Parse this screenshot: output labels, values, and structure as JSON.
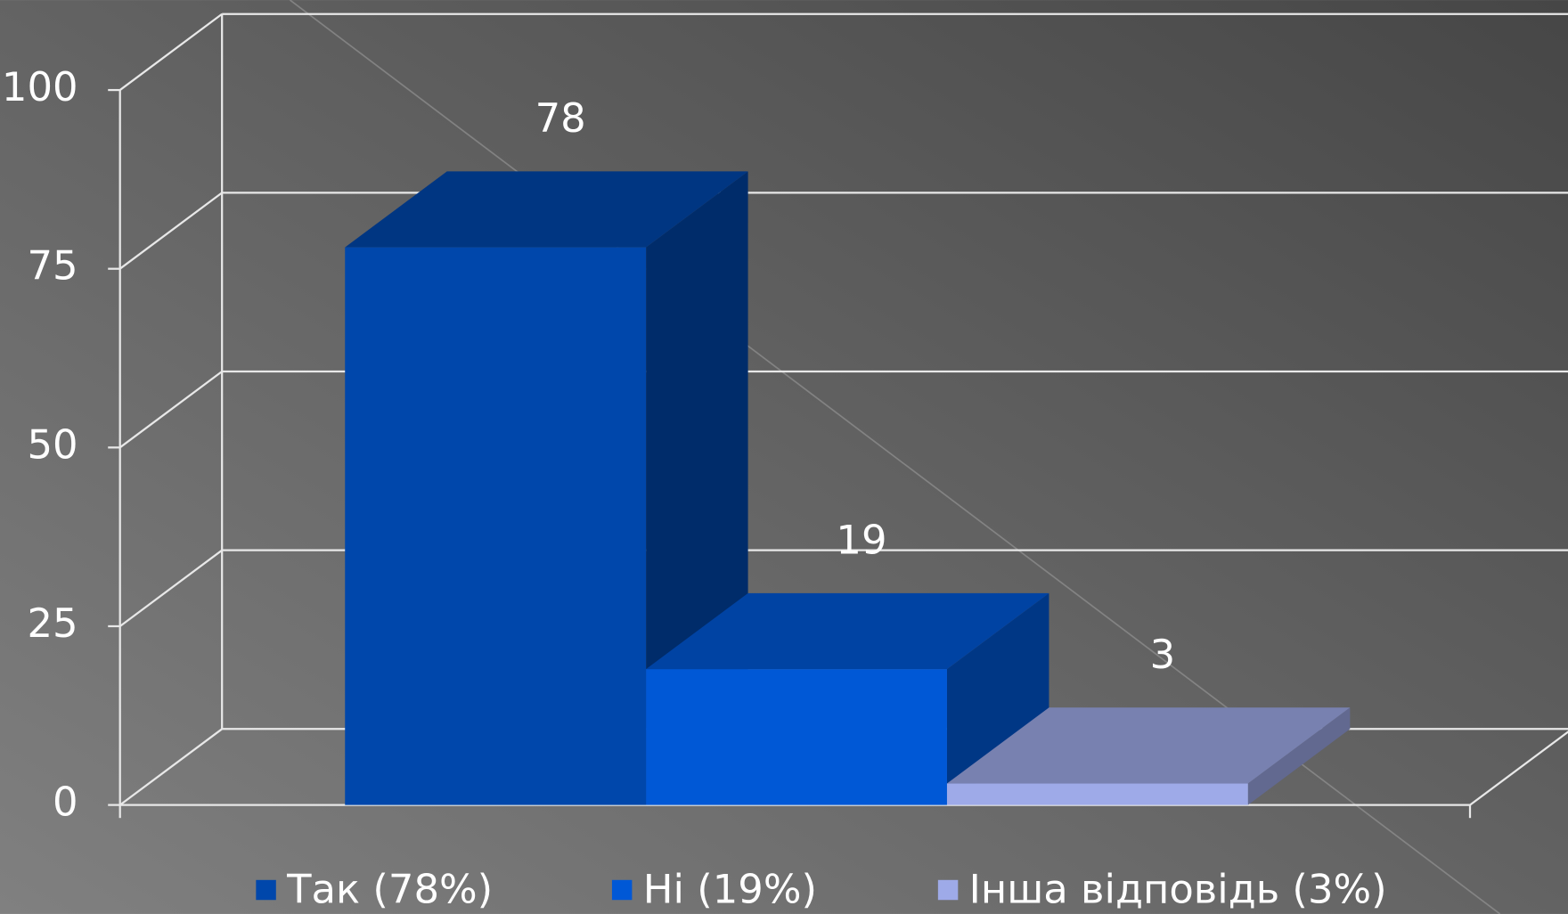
{
  "chart_data": {
    "type": "bar3d",
    "categories": [
      null
    ],
    "series": [
      {
        "name": "Так (78%)",
        "color": "#0047ab",
        "values": [
          78
        ]
      },
      {
        "name": "Ні (19%)",
        "color": "#0058d6",
        "values": [
          19
        ]
      },
      {
        "name": "Інша відповідь (3%)",
        "color": "#9eaae8",
        "values": [
          3
        ]
      }
    ],
    "ylim": [
      0,
      100
    ],
    "yticks": [
      0,
      25,
      50,
      75,
      100
    ],
    "grid": true,
    "legend": "bottom"
  }
}
